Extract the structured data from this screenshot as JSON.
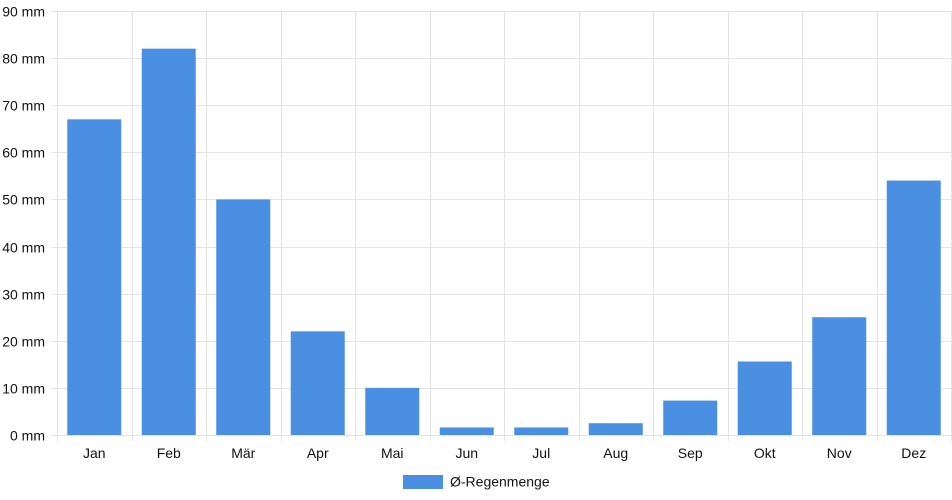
{
  "chart_data": {
    "type": "bar",
    "categories": [
      "Jan",
      "Feb",
      "Mär",
      "Apr",
      "Mai",
      "Jun",
      "Jul",
      "Aug",
      "Sep",
      "Okt",
      "Nov",
      "Dez"
    ],
    "series": [
      {
        "name": "Ø-Regenmenge",
        "values": [
          67,
          82,
          50,
          22,
          10,
          1.6,
          1.6,
          2.5,
          7.3,
          15.6,
          25,
          54
        ],
        "color": "#4a8fe2"
      }
    ],
    "y_ticks": [
      "0 mm",
      "10 mm",
      "20 mm",
      "30 mm",
      "40 mm",
      "50 mm",
      "60 mm",
      "70 mm",
      "80 mm",
      "90 mm"
    ],
    "ylim": [
      0,
      90
    ],
    "y_step": 10,
    "grid": true,
    "legend_position": "bottom"
  }
}
